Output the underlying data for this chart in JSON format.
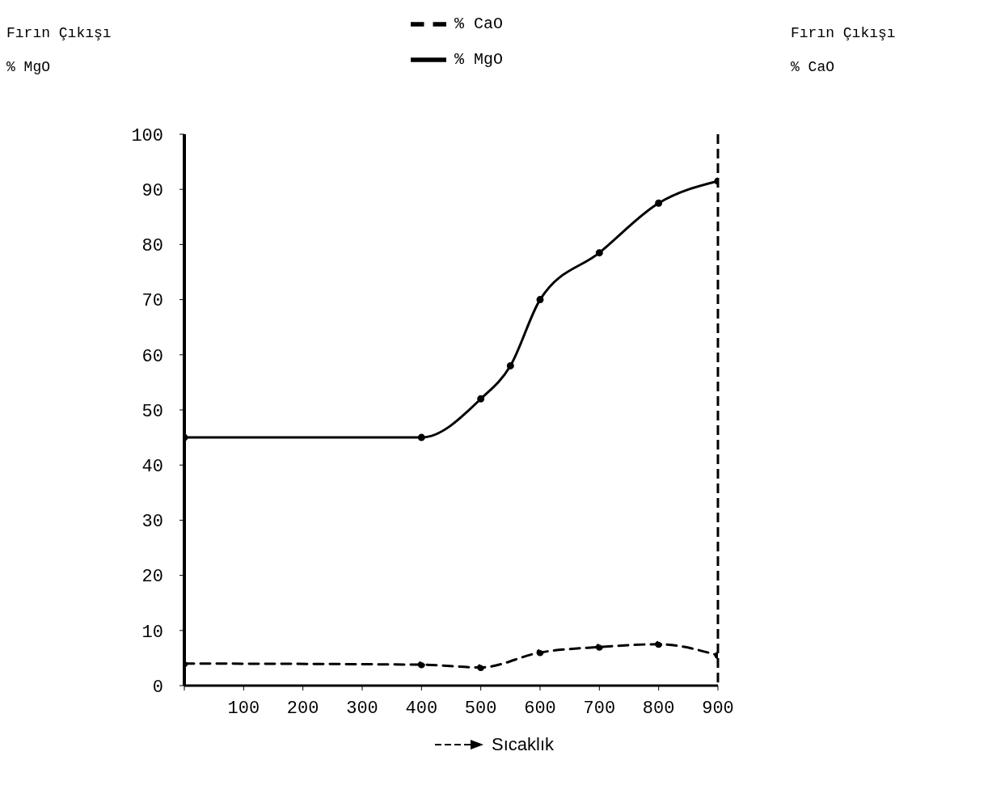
{
  "chart_data": {
    "type": "line",
    "xlabel": "Sıcaklık",
    "ylabel": "Fırın Çıkışı % MgO",
    "y2label": "Fırın Çıkışı % CaO",
    "xlim": [
      0,
      900
    ],
    "xticks": [
      {
        "value": 0,
        "label": null
      },
      100,
      200,
      300,
      400,
      500,
      600,
      700,
      800,
      900
    ],
    "ylim": [
      0,
      100
    ],
    "yticks": [
      0,
      10,
      20,
      30,
      40,
      50,
      60,
      70,
      80,
      90,
      100
    ],
    "grid": false,
    "legend": "top",
    "marker": "circle",
    "series": [
      {
        "name": "% MgO",
        "color": "#000000",
        "line_style": "solid",
        "x": [
          0,
          400,
          500,
          550,
          600,
          700,
          800,
          900
        ],
        "values": [
          45,
          45,
          52,
          58,
          70,
          78.5,
          87.5,
          91.5
        ]
      },
      {
        "name": "% CaO",
        "color": "#000000",
        "line_style": "dashed",
        "x": [
          0,
          400,
          500,
          600,
          700,
          800,
          900
        ],
        "values": [
          4,
          3.8,
          3.3,
          6,
          7,
          7.5,
          5.5
        ]
      }
    ]
  }
}
